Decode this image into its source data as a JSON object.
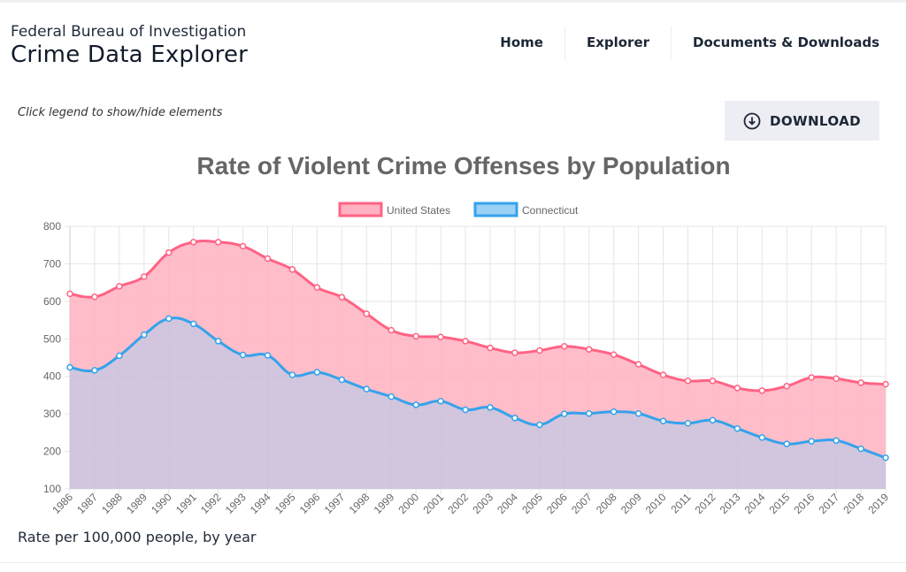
{
  "header": {
    "org": "Federal Bureau of Investigation",
    "app_name": "Crime Data Explorer",
    "nav": [
      "Home",
      "Explorer",
      "Documents & Downloads"
    ]
  },
  "toolbar": {
    "hint": "Click legend to show/hide elements",
    "download_label": "DOWNLOAD",
    "download_icon": "download-circle-icon"
  },
  "chart_data": {
    "type": "area",
    "title": "Rate of Violent Crime Offenses by Population",
    "caption": "Rate per 100,000 people, by year",
    "legend_position": "top",
    "grid": true,
    "ylim": [
      100,
      800
    ],
    "yticks": [
      100,
      200,
      300,
      400,
      500,
      600,
      700,
      800
    ],
    "x": [
      "1986",
      "1987",
      "1988",
      "1989",
      "1990",
      "1991",
      "1992",
      "1993",
      "1994",
      "1995",
      "1996",
      "1997",
      "1998",
      "1999",
      "2000",
      "2001",
      "2002",
      "2003",
      "2004",
      "2005",
      "2006",
      "2007",
      "2008",
      "2009",
      "2010",
      "2011",
      "2012",
      "2013",
      "2014",
      "2015",
      "2016",
      "2017",
      "2018",
      "2019"
    ],
    "series": [
      {
        "name": "United States",
        "color": "#ff6384",
        "fill": "#ffb1c1",
        "values": [
          620,
          612,
          640,
          666,
          730,
          758,
          758,
          747,
          714,
          685,
          637,
          611,
          567,
          523,
          507,
          505,
          494,
          476,
          463,
          469,
          480,
          472,
          458,
          432,
          404,
          388,
          388,
          369,
          362,
          374,
          397,
          394,
          383,
          379
        ]
      },
      {
        "name": "Connecticut",
        "color": "#36a2eb",
        "fill": "#9ad0f5",
        "values": [
          424,
          416,
          455,
          511,
          554,
          540,
          494,
          457,
          456,
          404,
          411,
          391,
          366,
          346,
          324,
          334,
          311,
          317,
          289,
          271,
          300,
          301,
          306,
          301,
          281,
          275,
          283,
          261,
          237,
          220,
          227,
          229,
          207,
          183
        ]
      }
    ]
  }
}
